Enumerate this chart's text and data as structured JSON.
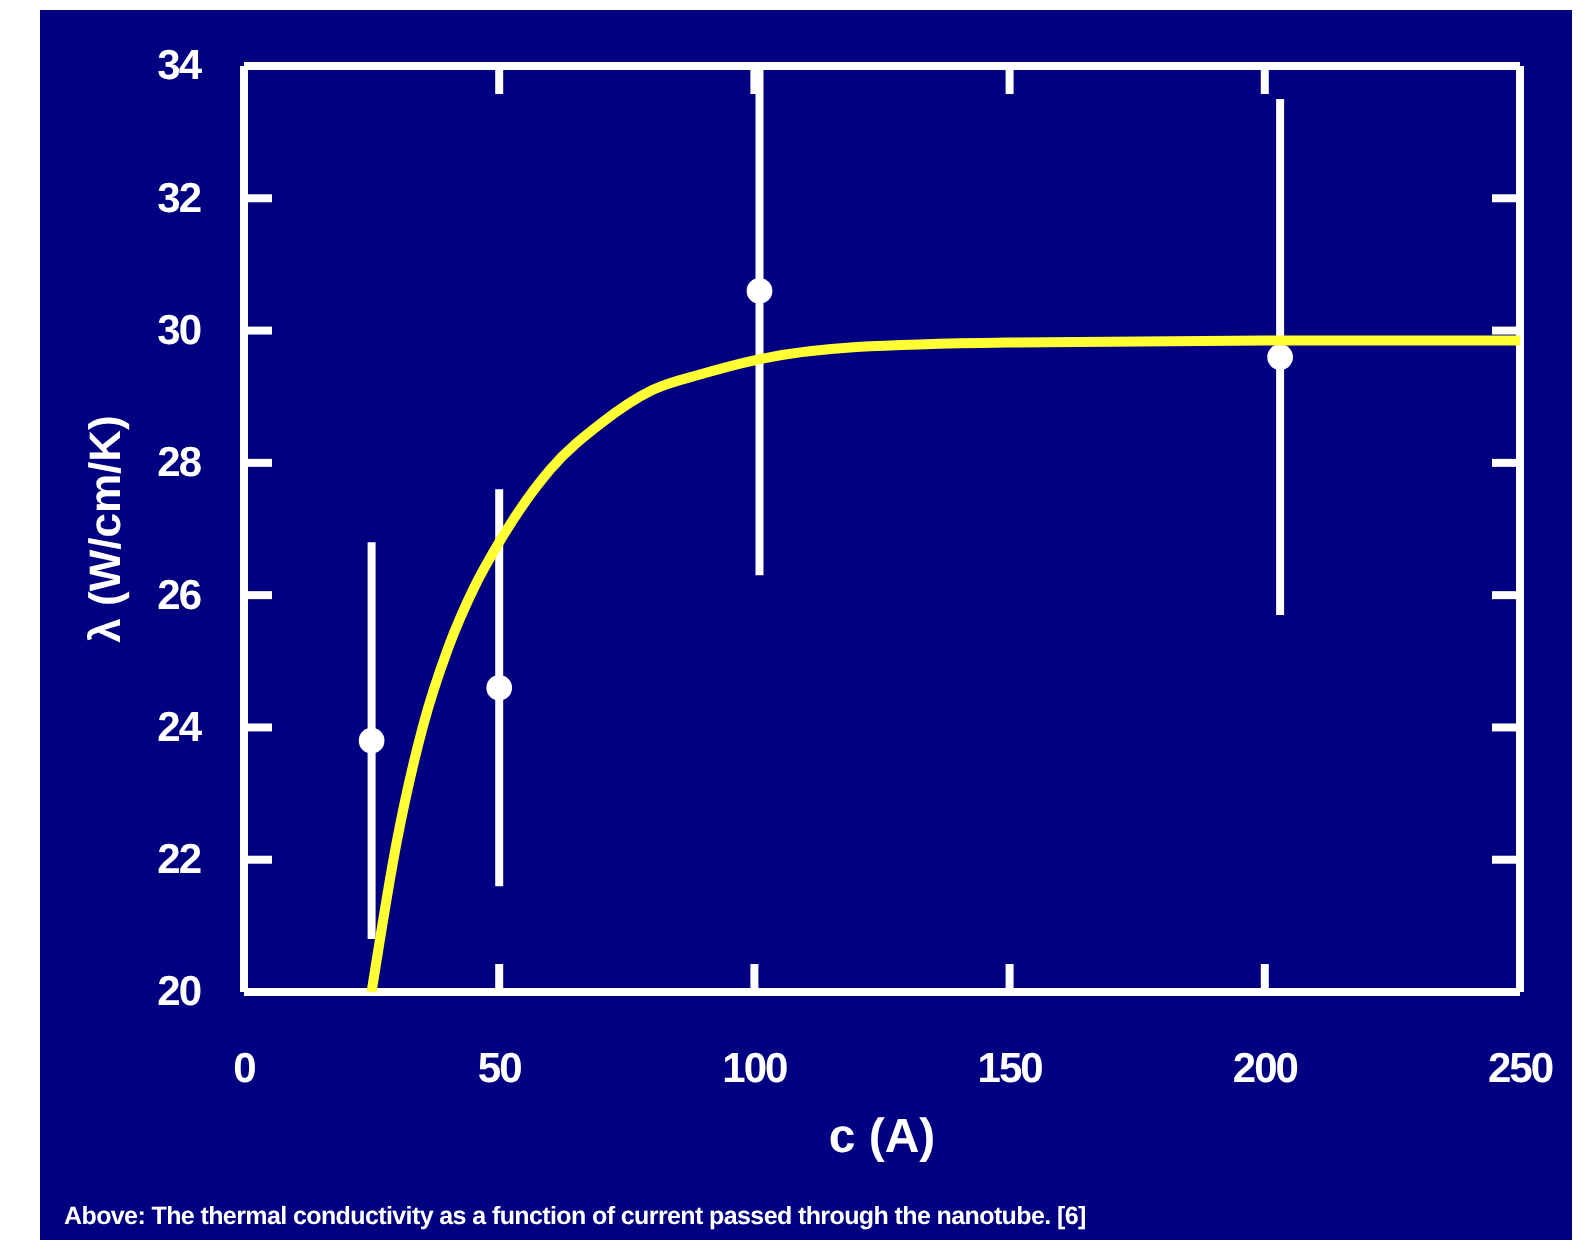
{
  "chart_data": {
    "type": "scatter",
    "xlabel": "c (A)",
    "ylabel": "λ (W/cm/K)",
    "xlim": [
      0,
      250
    ],
    "xticks": [
      0,
      50,
      100,
      150,
      200,
      250
    ],
    "ylim": [
      20,
      34
    ],
    "yticks": [
      20,
      22,
      24,
      26,
      28,
      30,
      32,
      34
    ],
    "grid": false,
    "annotations": [
      "Above: The thermal conductivity as a function of current passed through the nanotube. [6]"
    ],
    "series": [
      {
        "color": "#ffffff",
        "marker": "circle",
        "x": [
          25,
          50,
          101,
          203
        ],
        "values": [
          23.8,
          24.6,
          30.6,
          29.6
        ],
        "errors": [
          [
            20.8,
            26.8
          ],
          [
            21.6,
            27.6
          ],
          [
            26.3,
            34
          ],
          [
            25.7,
            33.5
          ]
        ]
      },
      {
        "type": "line",
        "color": "#ffff33",
        "marker": "none",
        "line_style": "solid",
        "x": [
          25,
          30,
          35,
          40,
          45,
          50,
          60,
          70,
          80,
          90,
          100,
          120,
          150,
          200,
          250
        ],
        "values": [
          20,
          22.3,
          24,
          25.2,
          26.1,
          26.8,
          27.9,
          28.6,
          29.1,
          29.35,
          29.55,
          29.75,
          29.82,
          29.85,
          29.85
        ]
      }
    ]
  }
}
